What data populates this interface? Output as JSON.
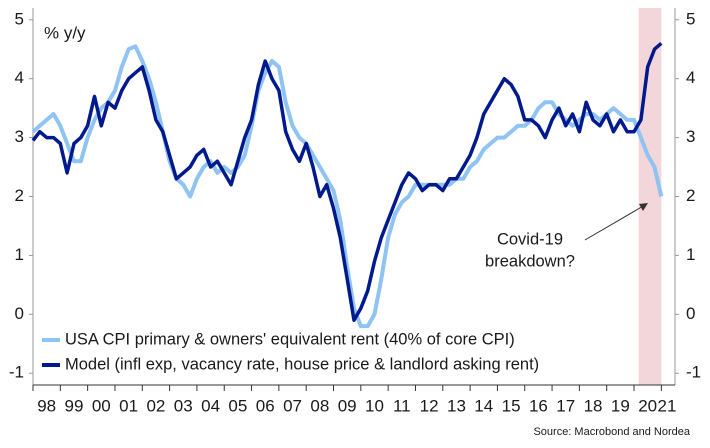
{
  "chart_data": {
    "type": "line",
    "y_label": "% y/y",
    "source": "Source: Macrobond and Nordea",
    "annotation": [
      "Covid-19",
      "breakdown?"
    ],
    "shade": [
      2020.17,
      2021.0
    ],
    "x": [
      1998.0,
      1998.25,
      1998.5,
      1998.75,
      1999.0,
      1999.25,
      1999.5,
      1999.75,
      2000.0,
      2000.25,
      2000.5,
      2000.75,
      2001.0,
      2001.25,
      2001.5,
      2001.75,
      2002.0,
      2002.25,
      2002.5,
      2002.75,
      2003.0,
      2003.25,
      2003.5,
      2003.75,
      2004.0,
      2004.25,
      2004.5,
      2004.75,
      2005.0,
      2005.25,
      2005.5,
      2005.75,
      2006.0,
      2006.25,
      2006.5,
      2006.75,
      2007.0,
      2007.25,
      2007.5,
      2007.75,
      2008.0,
      2008.25,
      2008.5,
      2008.75,
      2009.0,
      2009.25,
      2009.5,
      2009.75,
      2010.0,
      2010.25,
      2010.5,
      2010.75,
      2011.0,
      2011.25,
      2011.5,
      2011.75,
      2012.0,
      2012.25,
      2012.5,
      2012.75,
      2013.0,
      2013.25,
      2013.5,
      2013.75,
      2014.0,
      2014.25,
      2014.5,
      2014.75,
      2015.0,
      2015.25,
      2015.5,
      2015.75,
      2016.0,
      2016.25,
      2016.5,
      2016.75,
      2017.0,
      2017.25,
      2017.5,
      2017.75,
      2018.0,
      2018.25,
      2018.5,
      2018.75,
      2019.0,
      2019.25,
      2019.5,
      2019.75,
      2020.0,
      2020.25,
      2020.5,
      2020.75,
      2021.0
    ],
    "series": [
      {
        "name": "USA CPI primary & owners' equivalent rent (40% of core CPI)",
        "color": "#8ec3f2",
        "values": [
          3.1,
          3.2,
          3.3,
          3.4,
          3.2,
          2.9,
          2.6,
          2.6,
          3.0,
          3.3,
          3.5,
          3.6,
          3.8,
          4.2,
          4.5,
          4.55,
          4.3,
          4.0,
          3.6,
          3.1,
          2.6,
          2.3,
          2.2,
          2.0,
          2.3,
          2.5,
          2.6,
          2.4,
          2.5,
          2.4,
          2.5,
          2.7,
          3.2,
          3.8,
          4.1,
          4.3,
          4.2,
          3.6,
          3.2,
          3.0,
          2.9,
          2.7,
          2.5,
          2.3,
          2.1,
          1.6,
          0.8,
          0.1,
          -0.2,
          -0.2,
          0.0,
          0.6,
          1.3,
          1.7,
          1.9,
          2.0,
          2.2,
          2.2,
          2.2,
          2.2,
          2.2,
          2.2,
          2.3,
          2.3,
          2.5,
          2.6,
          2.8,
          2.9,
          3.0,
          3.0,
          3.1,
          3.2,
          3.2,
          3.3,
          3.5,
          3.6,
          3.6,
          3.4,
          3.3,
          3.2,
          3.3,
          3.4,
          3.4,
          3.3,
          3.4,
          3.5,
          3.4,
          3.3,
          3.3,
          3.0,
          2.7,
          2.5,
          2.0
        ]
      },
      {
        "name": "Model (infl exp, vacancy rate, house price & landlord asking rent)",
        "color": "#00198c",
        "values": [
          2.95,
          3.1,
          3.0,
          3.0,
          2.9,
          2.4,
          2.9,
          3.0,
          3.2,
          3.7,
          3.2,
          3.6,
          3.5,
          3.8,
          4.0,
          4.1,
          4.2,
          3.8,
          3.3,
          3.1,
          2.7,
          2.3,
          2.4,
          2.5,
          2.7,
          2.8,
          2.5,
          2.6,
          2.4,
          2.2,
          2.6,
          3.0,
          3.3,
          3.9,
          4.3,
          4.0,
          3.8,
          3.1,
          2.8,
          2.6,
          2.9,
          2.5,
          2.0,
          2.2,
          1.8,
          1.3,
          0.6,
          -0.1,
          0.1,
          0.4,
          0.9,
          1.3,
          1.6,
          1.9,
          2.2,
          2.4,
          2.3,
          2.1,
          2.2,
          2.2,
          2.1,
          2.3,
          2.3,
          2.5,
          2.7,
          3.0,
          3.4,
          3.6,
          3.8,
          4.0,
          3.9,
          3.7,
          3.3,
          3.3,
          3.2,
          3.0,
          3.3,
          3.5,
          3.2,
          3.4,
          3.1,
          3.6,
          3.3,
          3.2,
          3.4,
          3.1,
          3.3,
          3.1,
          3.1,
          3.3,
          4.2,
          4.5,
          4.6
        ]
      }
    ],
    "xlim": [
      1998.0,
      2021.5
    ],
    "xticks": [
      {
        "value": 1998,
        "label": "98"
      },
      {
        "value": 1999,
        "label": "99"
      },
      {
        "value": 2000,
        "label": "00"
      },
      {
        "value": 2001,
        "label": "01"
      },
      {
        "value": 2002,
        "label": "02"
      },
      {
        "value": 2003,
        "label": "03"
      },
      {
        "value": 2004,
        "label": "04"
      },
      {
        "value": 2005,
        "label": "05"
      },
      {
        "value": 2006,
        "label": "06"
      },
      {
        "value": 2007,
        "label": "07"
      },
      {
        "value": 2008,
        "label": "08"
      },
      {
        "value": 2009,
        "label": "09"
      },
      {
        "value": 2010,
        "label": "10"
      },
      {
        "value": 2011,
        "label": "11"
      },
      {
        "value": 2012,
        "label": "12"
      },
      {
        "value": 2013,
        "label": "13"
      },
      {
        "value": 2014,
        "label": "14"
      },
      {
        "value": 2015,
        "label": "15"
      },
      {
        "value": 2016,
        "label": "16"
      },
      {
        "value": 2017,
        "label": "17"
      },
      {
        "value": 2018,
        "label": "18"
      },
      {
        "value": 2019,
        "label": "19"
      },
      {
        "value": 2020,
        "label": "20"
      },
      {
        "value": 2021,
        "label": "21"
      }
    ],
    "ylim": [
      -1.2,
      5.2
    ],
    "yticks": [
      -1,
      0,
      1,
      2,
      3,
      4,
      5
    ],
    "grid": false
  }
}
